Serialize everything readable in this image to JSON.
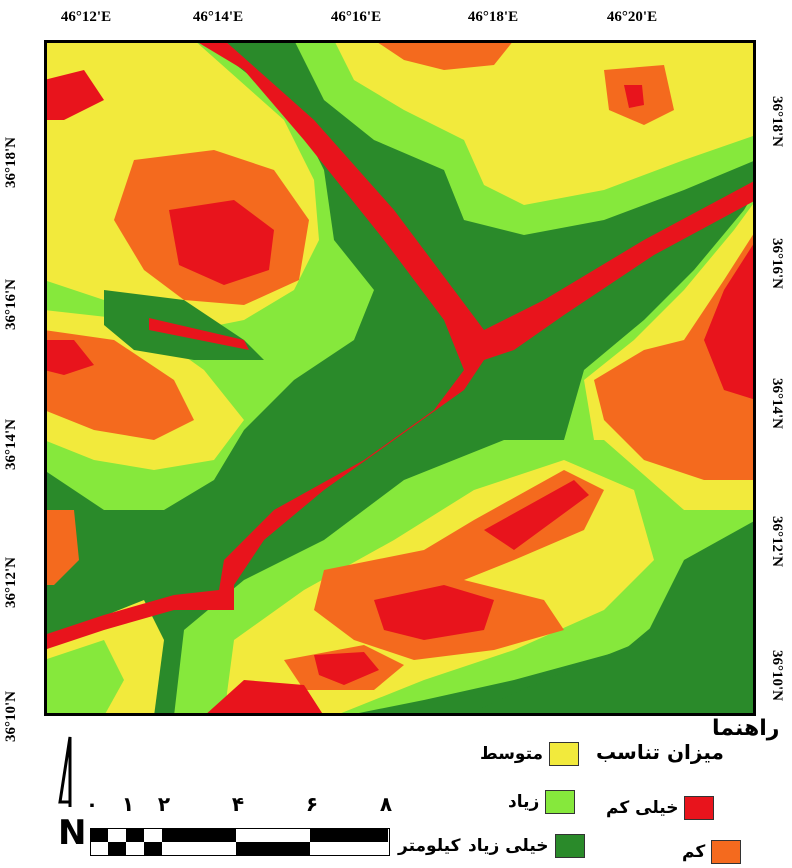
{
  "coords": {
    "top": [
      "46°12'E",
      "46°14'E",
      "46°16'E",
      "46°18'E",
      "46°20'E"
    ],
    "side": [
      "36°18'N",
      "36°16'N",
      "36°14'N",
      "36°12'N",
      "36°10'N"
    ]
  },
  "colors": {
    "very_low": "#e8141c",
    "low": "#f46a1e",
    "medium": "#f2ea3c",
    "high": "#86e83c",
    "very_high": "#2a8a2a"
  },
  "legend": {
    "title": "راهنما",
    "heading": "میزان تناسب",
    "items": [
      {
        "key": "medium",
        "label": "متوسط"
      },
      {
        "key": "high",
        "label": "زیاد"
      },
      {
        "key": "very_low",
        "label": "خیلی کم"
      },
      {
        "key": "very_high",
        "label": "خیلی زیاد"
      },
      {
        "key": "low",
        "label": "کم"
      }
    ]
  },
  "scale_bar": {
    "numbers": [
      "۰",
      "۱",
      "۲",
      "۴",
      "۶",
      "۸"
    ],
    "unit": "کیلومتر"
  },
  "north_arrow": "N"
}
